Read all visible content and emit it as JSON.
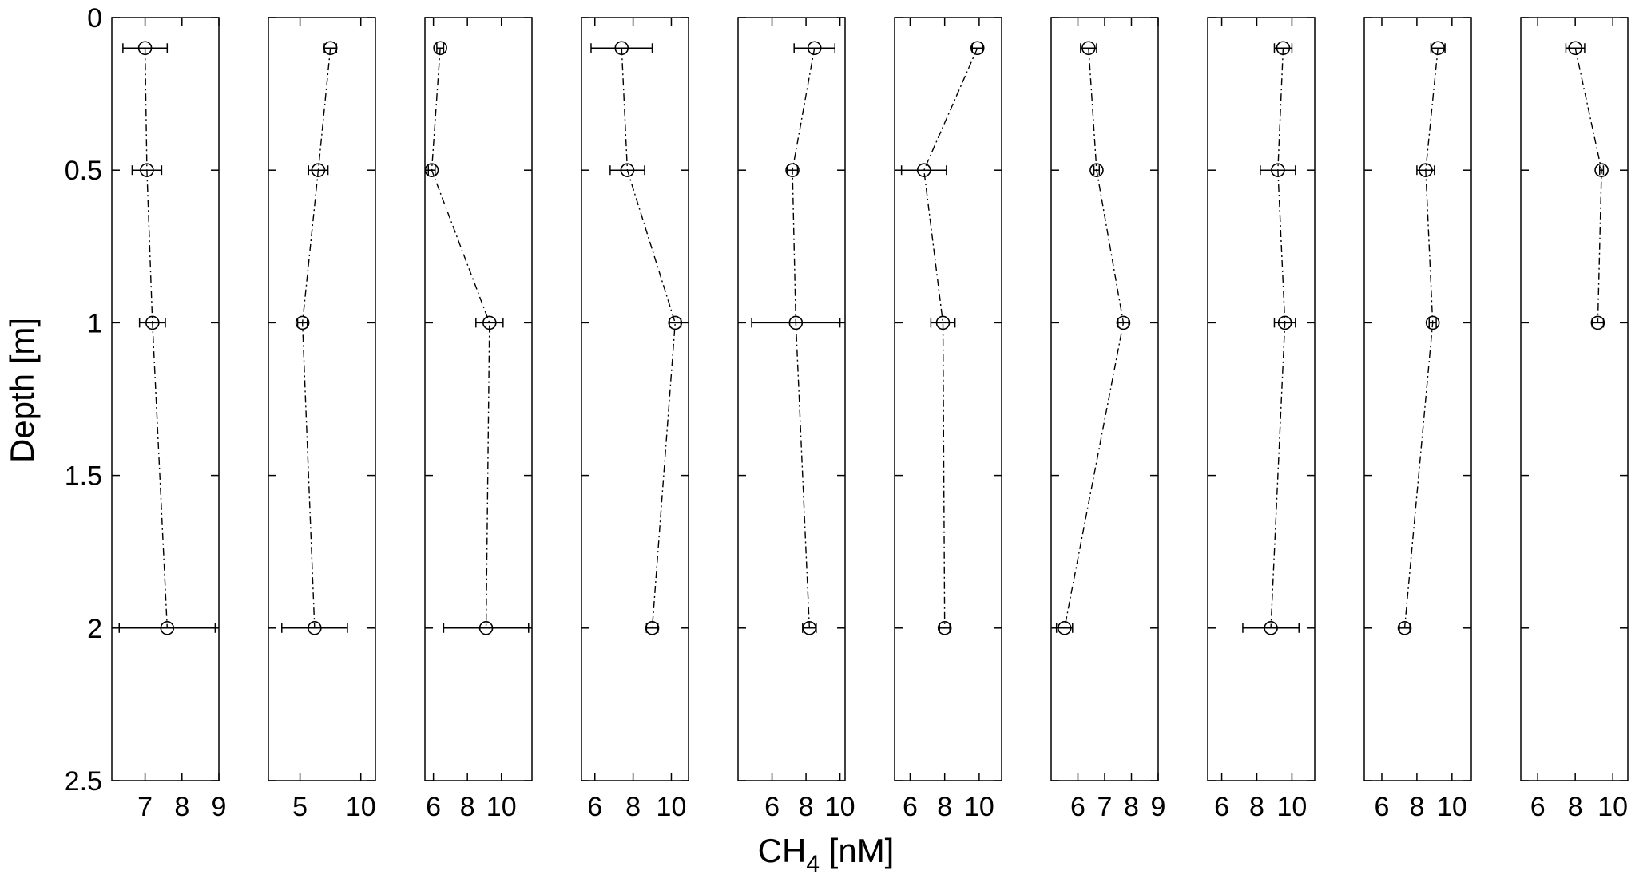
{
  "chart_data": {
    "type": "scatter",
    "ylabel": "Depth [m]",
    "xlabel_main": "CH",
    "xlabel_sub": "4",
    "xlabel_unit": " [nM]",
    "y_axis": {
      "range": [
        0,
        2.5
      ],
      "reversed": true,
      "ticks": [
        0,
        0.5,
        1,
        1.5,
        2,
        2.5
      ],
      "tick_labels": [
        "0",
        "0.5",
        "1",
        "1.5",
        "2",
        "2.5"
      ]
    },
    "line_style": "dash-dot",
    "marker": "open-circle",
    "line_color": "#000000",
    "panels": [
      {
        "xlim": [
          6.1,
          9
        ],
        "xticks": [
          7,
          8,
          9
        ],
        "points": [
          {
            "x": 7.0,
            "y": 0.1,
            "xerr": 0.6
          },
          {
            "x": 7.05,
            "y": 0.5,
            "xerr": 0.4
          },
          {
            "x": 7.2,
            "y": 1.0,
            "xerr": 0.35
          },
          {
            "x": 7.6,
            "y": 2.0,
            "xerr": 1.3
          }
        ]
      },
      {
        "xlim": [
          2.4,
          11.2
        ],
        "xticks": [
          5,
          10
        ],
        "points": [
          {
            "x": 7.5,
            "y": 0.1,
            "xerr": 0.5
          },
          {
            "x": 6.5,
            "y": 0.5,
            "xerr": 0.8
          },
          {
            "x": 5.2,
            "y": 1.0,
            "xerr": 0.4
          },
          {
            "x": 6.2,
            "y": 2.0,
            "xerr": 2.7
          }
        ]
      },
      {
        "xlim": [
          5.5,
          11.8
        ],
        "xticks": [
          6,
          8,
          10
        ],
        "points": [
          {
            "x": 6.4,
            "y": 0.1,
            "xerr": 0.2
          },
          {
            "x": 5.9,
            "y": 0.5,
            "xerr": 0.2
          },
          {
            "x": 9.3,
            "y": 1.0,
            "xerr": 0.8
          },
          {
            "x": 9.1,
            "y": 2.0,
            "xerr": 2.5
          }
        ]
      },
      {
        "xlim": [
          5.3,
          10.9
        ],
        "xticks": [
          6,
          8,
          10
        ],
        "points": [
          {
            "x": 7.4,
            "y": 0.1,
            "xerr": 1.6
          },
          {
            "x": 7.7,
            "y": 0.5,
            "xerr": 0.9
          },
          {
            "x": 10.2,
            "y": 1.0,
            "xerr": 0.3
          },
          {
            "x": 9.0,
            "y": 2.0,
            "xerr": 0.3
          }
        ]
      },
      {
        "xlim": [
          4.0,
          10.3
        ],
        "xticks": [
          6,
          8,
          10
        ],
        "points": [
          {
            "x": 8.5,
            "y": 0.1,
            "xerr": 1.2
          },
          {
            "x": 7.2,
            "y": 0.5,
            "xerr": 0.3
          },
          {
            "x": 7.4,
            "y": 1.0,
            "xerr": 2.6
          },
          {
            "x": 8.2,
            "y": 2.0,
            "xerr": 0.4
          }
        ]
      },
      {
        "xlim": [
          5.1,
          11.3
        ],
        "xticks": [
          6,
          8,
          10
        ],
        "points": [
          {
            "x": 9.9,
            "y": 0.1,
            "xerr": 0.3
          },
          {
            "x": 6.8,
            "y": 0.5,
            "xerr": 1.3
          },
          {
            "x": 7.9,
            "y": 1.0,
            "xerr": 0.7
          },
          {
            "x": 8.0,
            "y": 2.0,
            "xerr": 0.3
          }
        ]
      },
      {
        "xlim": [
          5.0,
          9.0
        ],
        "xticks": [
          6,
          7,
          8,
          9
        ],
        "points": [
          {
            "x": 6.4,
            "y": 0.1,
            "xerr": 0.3
          },
          {
            "x": 6.7,
            "y": 0.5,
            "xerr": 0.1
          },
          {
            "x": 7.7,
            "y": 1.0,
            "xerr": 0.2
          },
          {
            "x": 5.5,
            "y": 2.0,
            "xerr": 0.3
          }
        ]
      },
      {
        "xlim": [
          5.2,
          11.3
        ],
        "xticks": [
          6,
          8,
          10
        ],
        "points": [
          {
            "x": 9.5,
            "y": 0.1,
            "xerr": 0.5
          },
          {
            "x": 9.2,
            "y": 0.5,
            "xerr": 1.0
          },
          {
            "x": 9.6,
            "y": 1.0,
            "xerr": 0.6
          },
          {
            "x": 8.8,
            "y": 2.0,
            "xerr": 1.6
          }
        ]
      },
      {
        "xlim": [
          5.0,
          11.1
        ],
        "xticks": [
          6,
          8,
          10
        ],
        "points": [
          {
            "x": 9.2,
            "y": 0.1,
            "xerr": 0.4
          },
          {
            "x": 8.5,
            "y": 0.5,
            "xerr": 0.5
          },
          {
            "x": 8.9,
            "y": 1.0,
            "xerr": 0.2
          },
          {
            "x": 7.3,
            "y": 2.0,
            "xerr": 0.3
          }
        ]
      },
      {
        "xlim": [
          5.1,
          10.8
        ],
        "xticks": [
          6,
          8,
          10
        ],
        "points": [
          {
            "x": 8.0,
            "y": 0.1,
            "xerr": 0.5
          },
          {
            "x": 9.4,
            "y": 0.5,
            "xerr": 0.1
          },
          {
            "x": 9.2,
            "y": 1.0,
            "xerr": 0.3
          }
        ]
      }
    ]
  }
}
